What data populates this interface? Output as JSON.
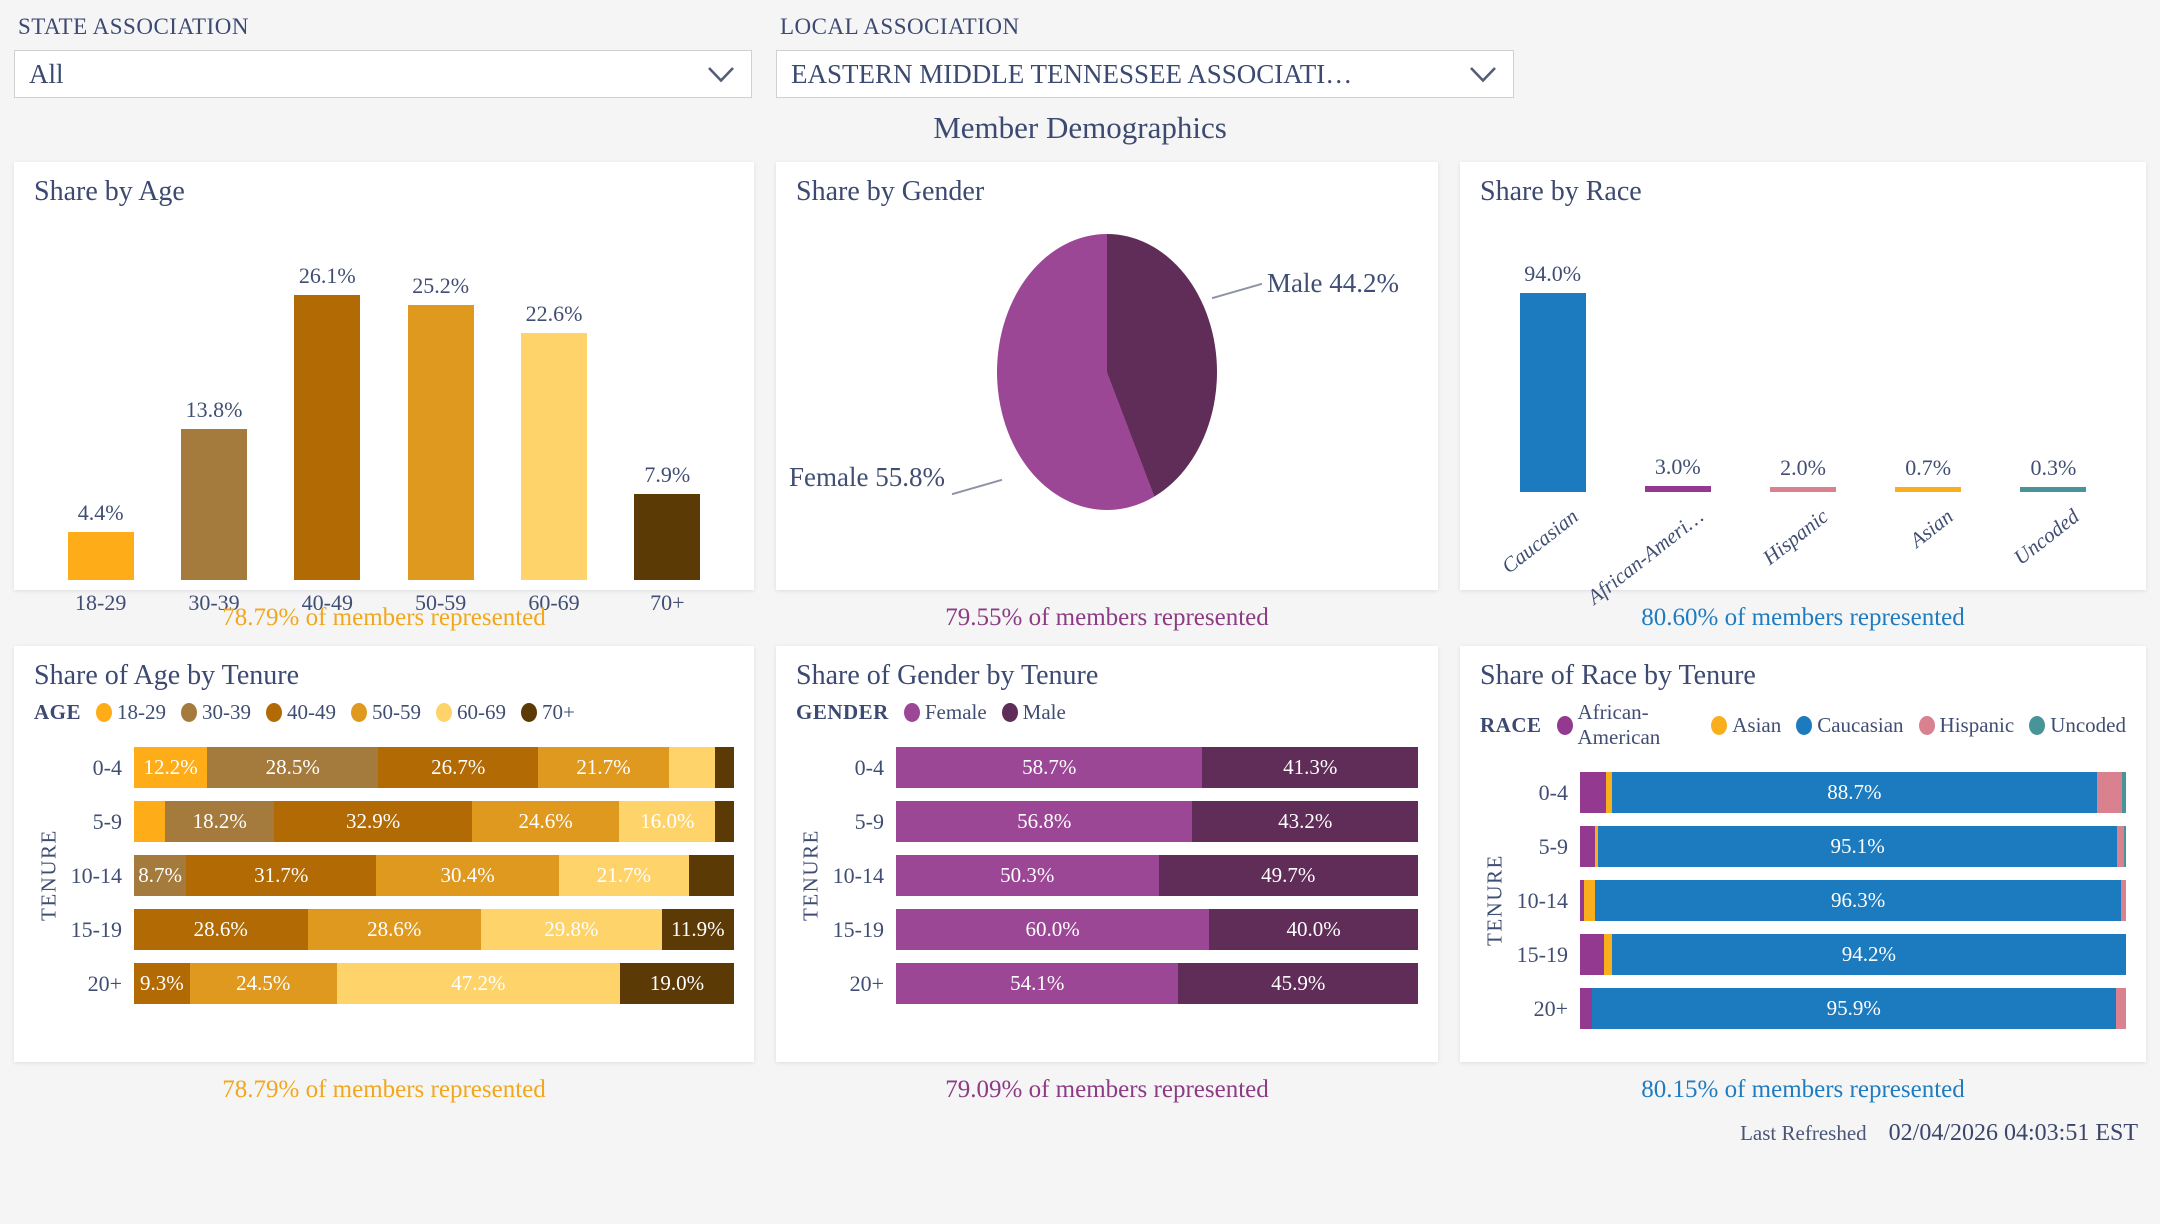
{
  "filters": {
    "state": {
      "label": "STATE ASSOCIATION",
      "value": "All",
      "icon": "chevron-down"
    },
    "local": {
      "label": "LOCAL ASSOCIATION",
      "value": "EASTERN MIDDLE TENNESSEE ASSOCIATI…",
      "icon": "chevron-down"
    }
  },
  "page_title": "Member Demographics",
  "footer": {
    "last_refreshed_label": "Last Refreshed",
    "last_refreshed_value": "02/04/2026 04:03:51 EST"
  },
  "colors": {
    "text_navy": "#3c4971",
    "caption_orange": "#f2a71c",
    "caption_purple": "#8d3b84",
    "caption_blue": "#1f7cc0"
  },
  "chart_data": [
    {
      "type": "bar",
      "title": "Share by Age",
      "categories": [
        "18-29",
        "30-39",
        "40-49",
        "50-59",
        "60-69",
        "70+"
      ],
      "values": [
        4.4,
        13.8,
        26.1,
        25.2,
        22.6,
        7.9
      ],
      "value_labels": [
        "4.4%",
        "13.8%",
        "26.1%",
        "25.2%",
        "22.6%",
        "7.9%"
      ],
      "colors": [
        "#feac18",
        "#a57b3d",
        "#b16a04",
        "#e0991f",
        "#fed36a",
        "#5c3a06"
      ],
      "xlabel": "",
      "ylabel": "",
      "ylim": [
        0,
        27.5
      ],
      "grid": false,
      "rotated_labels": false,
      "caption": {
        "text": "78.79% of members represented",
        "color": "#f2a71c"
      }
    },
    {
      "type": "pie",
      "title": "Share by Gender",
      "slices": [
        {
          "label": "Male",
          "value": 44.2,
          "display": "Male 44.2%",
          "color": "#602c58"
        },
        {
          "label": "Female",
          "value": 55.8,
          "display": "Female 55.8%",
          "color": "#9b4796"
        }
      ],
      "start_angle_deg": 0,
      "direction": "clockwise",
      "caption": {
        "text": "79.55% of members represented",
        "color": "#8d3b84"
      }
    },
    {
      "type": "bar",
      "title": "Share by Race",
      "categories": [
        "Caucasian",
        "African-Ameri…",
        "Hispanic",
        "Asian",
        "Uncoded"
      ],
      "values": [
        94.0,
        3.0,
        2.0,
        0.7,
        0.3
      ],
      "value_labels": [
        "94.0%",
        "3.0%",
        "2.0%",
        "0.7%",
        "0.3%"
      ],
      "colors": [
        "#1c7abf",
        "#93398f",
        "#d9818f",
        "#f9ae1e",
        "#489599"
      ],
      "xlabel": "",
      "ylabel": "",
      "ylim": [
        0,
        100
      ],
      "grid": false,
      "rotated_labels": true,
      "caption": {
        "text": "80.60% of members represented",
        "color": "#1f7cc0"
      }
    },
    {
      "type": "stacked_bar_h",
      "title": "Share of Age by Tenure",
      "legend": {
        "title": "AGE",
        "items": [
          {
            "label": "18-29",
            "color": "#feac18"
          },
          {
            "label": "30-39",
            "color": "#a57b3d"
          },
          {
            "label": "40-49",
            "color": "#b16a04"
          },
          {
            "label": "50-59",
            "color": "#e0991f"
          },
          {
            "label": "60-69",
            "color": "#fed36a"
          },
          {
            "label": "70+",
            "color": "#5c3a06"
          }
        ]
      },
      "ylabel": "TENURE",
      "palette": {
        "18-29": "#feac18",
        "30-39": "#a57b3d",
        "40-49": "#b16a04",
        "50-59": "#e0991f",
        "60-69": "#fed36a",
        "70+": "#5c3a06"
      },
      "rows": [
        {
          "category": "0-4",
          "segments": [
            {
              "key": "18-29",
              "value": 12.2,
              "label": "12.2%"
            },
            {
              "key": "30-39",
              "value": 28.5,
              "label": "28.5%"
            },
            {
              "key": "40-49",
              "value": 26.7,
              "label": "26.7%"
            },
            {
              "key": "50-59",
              "value": 21.7,
              "label": "21.7%"
            },
            {
              "key": "60-69",
              "value": 7.7,
              "label": ""
            },
            {
              "key": "70+",
              "value": 3.2,
              "label": ""
            }
          ]
        },
        {
          "category": "5-9",
          "segments": [
            {
              "key": "18-29",
              "value": 5.2,
              "label": ""
            },
            {
              "key": "30-39",
              "value": 18.2,
              "label": "18.2%"
            },
            {
              "key": "40-49",
              "value": 32.9,
              "label": "32.9%"
            },
            {
              "key": "50-59",
              "value": 24.6,
              "label": "24.6%"
            },
            {
              "key": "60-69",
              "value": 16.0,
              "label": "16.0%"
            },
            {
              "key": "70+",
              "value": 3.1,
              "label": ""
            }
          ]
        },
        {
          "category": "10-14",
          "segments": [
            {
              "key": "30-39",
              "value": 8.7,
              "label": "8.7%"
            },
            {
              "key": "40-49",
              "value": 31.7,
              "label": "31.7%"
            },
            {
              "key": "50-59",
              "value": 30.4,
              "label": "30.4%"
            },
            {
              "key": "60-69",
              "value": 21.7,
              "label": "21.7%"
            },
            {
              "key": "70+",
              "value": 7.5,
              "label": ""
            }
          ]
        },
        {
          "category": "15-19",
          "segments": [
            {
              "key": "40-49",
              "value": 28.6,
              "label": "28.6%"
            },
            {
              "key": "50-59",
              "value": 28.6,
              "label": "28.6%"
            },
            {
              "key": "60-69",
              "value": 29.8,
              "label": "29.8%"
            },
            {
              "key": "70+",
              "value": 11.9,
              "label": "11.9%"
            }
          ]
        },
        {
          "category": "20+",
          "segments": [
            {
              "key": "40-49",
              "value": 9.3,
              "label": "9.3%"
            },
            {
              "key": "50-59",
              "value": 24.5,
              "label": "24.5%"
            },
            {
              "key": "60-69",
              "value": 47.2,
              "label": "47.2%"
            },
            {
              "key": "70+",
              "value": 19.0,
              "label": "19.0%"
            }
          ]
        }
      ],
      "caption": {
        "text": "78.79% of members represented",
        "color": "#f2a71c"
      }
    },
    {
      "type": "stacked_bar_h",
      "title": "Share of Gender by Tenure",
      "legend": {
        "title": "GENDER",
        "items": [
          {
            "label": "Female",
            "color": "#9b4796"
          },
          {
            "label": "Male",
            "color": "#602c58"
          }
        ]
      },
      "ylabel": "TENURE",
      "palette": {
        "Female": "#9b4796",
        "Male": "#602c58"
      },
      "rows": [
        {
          "category": "0-4",
          "segments": [
            {
              "key": "Female",
              "value": 58.7,
              "label": "58.7%"
            },
            {
              "key": "Male",
              "value": 41.3,
              "label": "41.3%"
            }
          ]
        },
        {
          "category": "5-9",
          "segments": [
            {
              "key": "Female",
              "value": 56.8,
              "label": "56.8%"
            },
            {
              "key": "Male",
              "value": 43.2,
              "label": "43.2%"
            }
          ]
        },
        {
          "category": "10-14",
          "segments": [
            {
              "key": "Female",
              "value": 50.3,
              "label": "50.3%"
            },
            {
              "key": "Male",
              "value": 49.7,
              "label": "49.7%"
            }
          ]
        },
        {
          "category": "15-19",
          "segments": [
            {
              "key": "Female",
              "value": 60.0,
              "label": "60.0%"
            },
            {
              "key": "Male",
              "value": 40.0,
              "label": "40.0%"
            }
          ]
        },
        {
          "category": "20+",
          "segments": [
            {
              "key": "Female",
              "value": 54.1,
              "label": "54.1%"
            },
            {
              "key": "Male",
              "value": 45.9,
              "label": "45.9%"
            }
          ]
        }
      ],
      "caption": {
        "text": "79.09% of members represented",
        "color": "#8d3b84"
      }
    },
    {
      "type": "stacked_bar_h",
      "title": "Share of Race by Tenure",
      "legend": {
        "title": "RACE",
        "items": [
          {
            "label": "African-American",
            "color": "#93398f"
          },
          {
            "label": "Asian",
            "color": "#f9ae1e"
          },
          {
            "label": "Caucasian",
            "color": "#1c7abf"
          },
          {
            "label": "Hispanic",
            "color": "#d9818f"
          },
          {
            "label": "Uncoded",
            "color": "#489599"
          }
        ]
      },
      "ylabel": "TENURE",
      "palette": {
        "African-American": "#93398f",
        "Asian": "#f9ae1e",
        "Caucasian": "#1c7abf",
        "Hispanic": "#d9818f",
        "Uncoded": "#489599"
      },
      "rows": [
        {
          "category": "0-4",
          "segments": [
            {
              "key": "African-American",
              "value": 4.8,
              "label": ""
            },
            {
              "key": "Asian",
              "value": 1.1,
              "label": ""
            },
            {
              "key": "Caucasian",
              "value": 88.7,
              "label": "88.7%"
            },
            {
              "key": "Hispanic",
              "value": 4.7,
              "label": ""
            },
            {
              "key": "Uncoded",
              "value": 0.7,
              "label": ""
            }
          ]
        },
        {
          "category": "5-9",
          "segments": [
            {
              "key": "African-American",
              "value": 2.8,
              "label": ""
            },
            {
              "key": "Asian",
              "value": 0.5,
              "label": ""
            },
            {
              "key": "Caucasian",
              "value": 95.1,
              "label": "95.1%"
            },
            {
              "key": "Hispanic",
              "value": 1.2,
              "label": ""
            },
            {
              "key": "Uncoded",
              "value": 0.4,
              "label": ""
            }
          ]
        },
        {
          "category": "10-14",
          "segments": [
            {
              "key": "African-American",
              "value": 0.8,
              "label": ""
            },
            {
              "key": "Asian",
              "value": 2.0,
              "label": ""
            },
            {
              "key": "Caucasian",
              "value": 96.3,
              "label": "96.3%"
            },
            {
              "key": "Hispanic",
              "value": 0.9,
              "label": ""
            }
          ]
        },
        {
          "category": "15-19",
          "segments": [
            {
              "key": "African-American",
              "value": 4.4,
              "label": ""
            },
            {
              "key": "Asian",
              "value": 1.4,
              "label": ""
            },
            {
              "key": "Caucasian",
              "value": 94.2,
              "label": "94.2%"
            }
          ]
        },
        {
          "category": "20+",
          "segments": [
            {
              "key": "African-American",
              "value": 2.2,
              "label": ""
            },
            {
              "key": "Caucasian",
              "value": 95.9,
              "label": "95.9%"
            },
            {
              "key": "Hispanic",
              "value": 1.9,
              "label": ""
            }
          ]
        }
      ],
      "caption": {
        "text": "80.15% of members represented",
        "color": "#1f7cc0"
      }
    }
  ]
}
